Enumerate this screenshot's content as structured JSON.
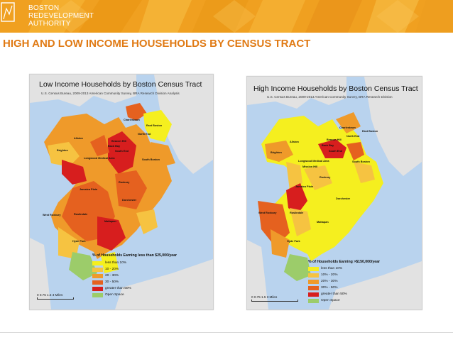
{
  "organization": {
    "line1": "BOSTON",
    "line2": "REDEVELOPMENT",
    "line3": "AUTHORITY"
  },
  "slide_title": "HIGH AND LOW INCOME HOUSEHOLDS BY CENSUS TRACT",
  "colors": {
    "banner": "#f0a020",
    "title": "#e07a14",
    "water": "#b9d3ee",
    "land": "#e2e2e2",
    "open_space": "#9ccc6a"
  },
  "maps": [
    {
      "title": "Low Income Households by Boston Census Tract",
      "source": "U.S. Census Bureau, 2009-2013 American Community Survey, BRA Research Division Analysis",
      "legend_title": "% of Households Earning less than $25,000/year",
      "legend": [
        {
          "label": "less than 10%",
          "color": "#f5ef1f"
        },
        {
          "label": "10 - 20%",
          "color": "#f6c341"
        },
        {
          "label": "20 - 30%",
          "color": "#ef9a2a"
        },
        {
          "label": "30 - 50%",
          "color": "#e5611f"
        },
        {
          "label": "greater than 50%",
          "color": "#d71e1e"
        },
        {
          "label": "Open Space",
          "color": "#9ccc6a"
        }
      ],
      "scale": "0   0.75  1.5          3 Miles",
      "neighborhoods": [
        "Charlestown",
        "East Boston",
        "Beacon Hill",
        "West End",
        "North End",
        "Back Bay",
        "South End",
        "Brighton",
        "Allston",
        "Fenway",
        "Longwood Medical Area",
        "Mission Hill",
        "South Boston",
        "Roxbury",
        "Jamaica Plain",
        "Dorchester",
        "West Roxbury",
        "Roslindale",
        "Mattapan",
        "Hyde Park"
      ]
    },
    {
      "title": "High Income Households by Boston Census Tract",
      "source": "U.S. Census Bureau, 2009-2013 American Community Survey, BRA Research Division",
      "legend_title": "% of Households Earning >$150,000/year",
      "legend": [
        {
          "label": "less than 10%",
          "color": "#f5ef1f"
        },
        {
          "label": "10% - 20%",
          "color": "#f6c341"
        },
        {
          "label": "20% - 30%",
          "color": "#ef9a2a"
        },
        {
          "label": "30% - 50%",
          "color": "#e5611f"
        },
        {
          "label": "greater than 50%",
          "color": "#d71e1e"
        },
        {
          "label": "Open Space",
          "color": "#9ccc6a"
        }
      ],
      "scale": "0    0.75     1.5                3 Miles",
      "neighborhoods": [
        "Charlestown",
        "East Boston",
        "Beacon Hill",
        "West End",
        "North End",
        "Back Bay",
        "South End",
        "Brighton",
        "Allston",
        "Fenway",
        "Longwood Medical Area",
        "Mission Hill",
        "South Boston",
        "Roxbury",
        "Jamaica Plain",
        "Dorchester",
        "West Roxbury",
        "Roslindale",
        "Mattapan",
        "Hyde Park"
      ]
    }
  ]
}
